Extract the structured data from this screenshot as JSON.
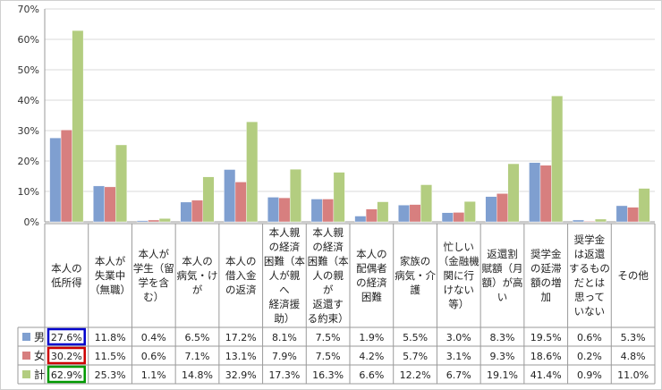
{
  "chart_data": {
    "type": "bar",
    "y_axis": {
      "min": 0,
      "max": 70,
      "step": 10,
      "tick_labels": [
        "0%",
        "10%",
        "20%",
        "30%",
        "40%",
        "50%",
        "60%",
        "70%"
      ]
    },
    "categories": [
      [
        "本人の",
        "低所得"
      ],
      [
        "本人が",
        "失業中",
        "（無職）"
      ],
      [
        "本人が",
        "学生（留",
        "学を含",
        "む）"
      ],
      [
        "本人の",
        "病気・け",
        "が"
      ],
      [
        "本人の",
        "借入金",
        "の返済"
      ],
      [
        "本人親",
        "の経済",
        "困難（本",
        "人が親",
        "へ",
        "経済援",
        "助）"
      ],
      [
        "本人親",
        "の経済",
        "困難（本",
        "人の親",
        "が",
        "返還す",
        "る約束）"
      ],
      [
        "本人の",
        "配偶者",
        "の経済",
        "困難"
      ],
      [
        "家族の",
        "病気・介",
        "護"
      ],
      [
        "忙しい",
        "（金融機",
        "関に行",
        "けない",
        "等）"
      ],
      [
        "返還割",
        "賦額（月",
        "額）が高",
        "い"
      ],
      [
        "奨学金",
        "の延滞",
        "額の増",
        "加"
      ],
      [
        "奨学金",
        "は返還",
        "するもの",
        "だとは",
        "思って",
        "いない"
      ],
      [
        "その他"
      ]
    ],
    "series": [
      {
        "name": "男",
        "color": "#7f9fd0",
        "values": [
          27.6,
          11.8,
          0.4,
          6.5,
          17.2,
          8.1,
          7.5,
          1.9,
          5.5,
          3.0,
          8.3,
          19.5,
          0.6,
          5.3
        ],
        "labels": [
          "27.6%",
          "11.8%",
          "0.4%",
          "6.5%",
          "17.2%",
          "8.1%",
          "7.5%",
          "1.9%",
          "5.5%",
          "3.0%",
          "8.3%",
          "19.5%",
          "0.6%",
          "5.3%"
        ]
      },
      {
        "name": "女",
        "color": "#d77f7f",
        "values": [
          30.2,
          11.5,
          0.6,
          7.1,
          13.1,
          7.9,
          7.5,
          4.2,
          5.7,
          3.1,
          9.3,
          18.6,
          0.2,
          4.8
        ],
        "labels": [
          "30.2%",
          "11.5%",
          "0.6%",
          "7.1%",
          "13.1%",
          "7.9%",
          "7.5%",
          "4.2%",
          "5.7%",
          "3.1%",
          "9.3%",
          "18.6%",
          "0.2%",
          "4.8%"
        ]
      },
      {
        "name": "計",
        "color": "#b3cd80",
        "values": [
          62.9,
          25.3,
          1.1,
          14.8,
          32.9,
          17.3,
          16.3,
          6.6,
          12.2,
          6.7,
          19.1,
          41.4,
          0.9,
          11.0
        ],
        "labels": [
          "62.9%",
          "25.3%",
          "1.1%",
          "14.8%",
          "32.9%",
          "17.3%",
          "16.3%",
          "6.6%",
          "12.2%",
          "6.7%",
          "19.1%",
          "41.4%",
          "0.9%",
          "11.0%"
        ]
      }
    ],
    "highlight_boxes": [
      {
        "series": 0,
        "category": 0,
        "color": "#0000cc"
      },
      {
        "series": 1,
        "category": 0,
        "color": "#cc0000"
      },
      {
        "series": 2,
        "category": 0,
        "color": "#009900"
      }
    ],
    "gridlines": true,
    "legend_position": "table-left"
  }
}
